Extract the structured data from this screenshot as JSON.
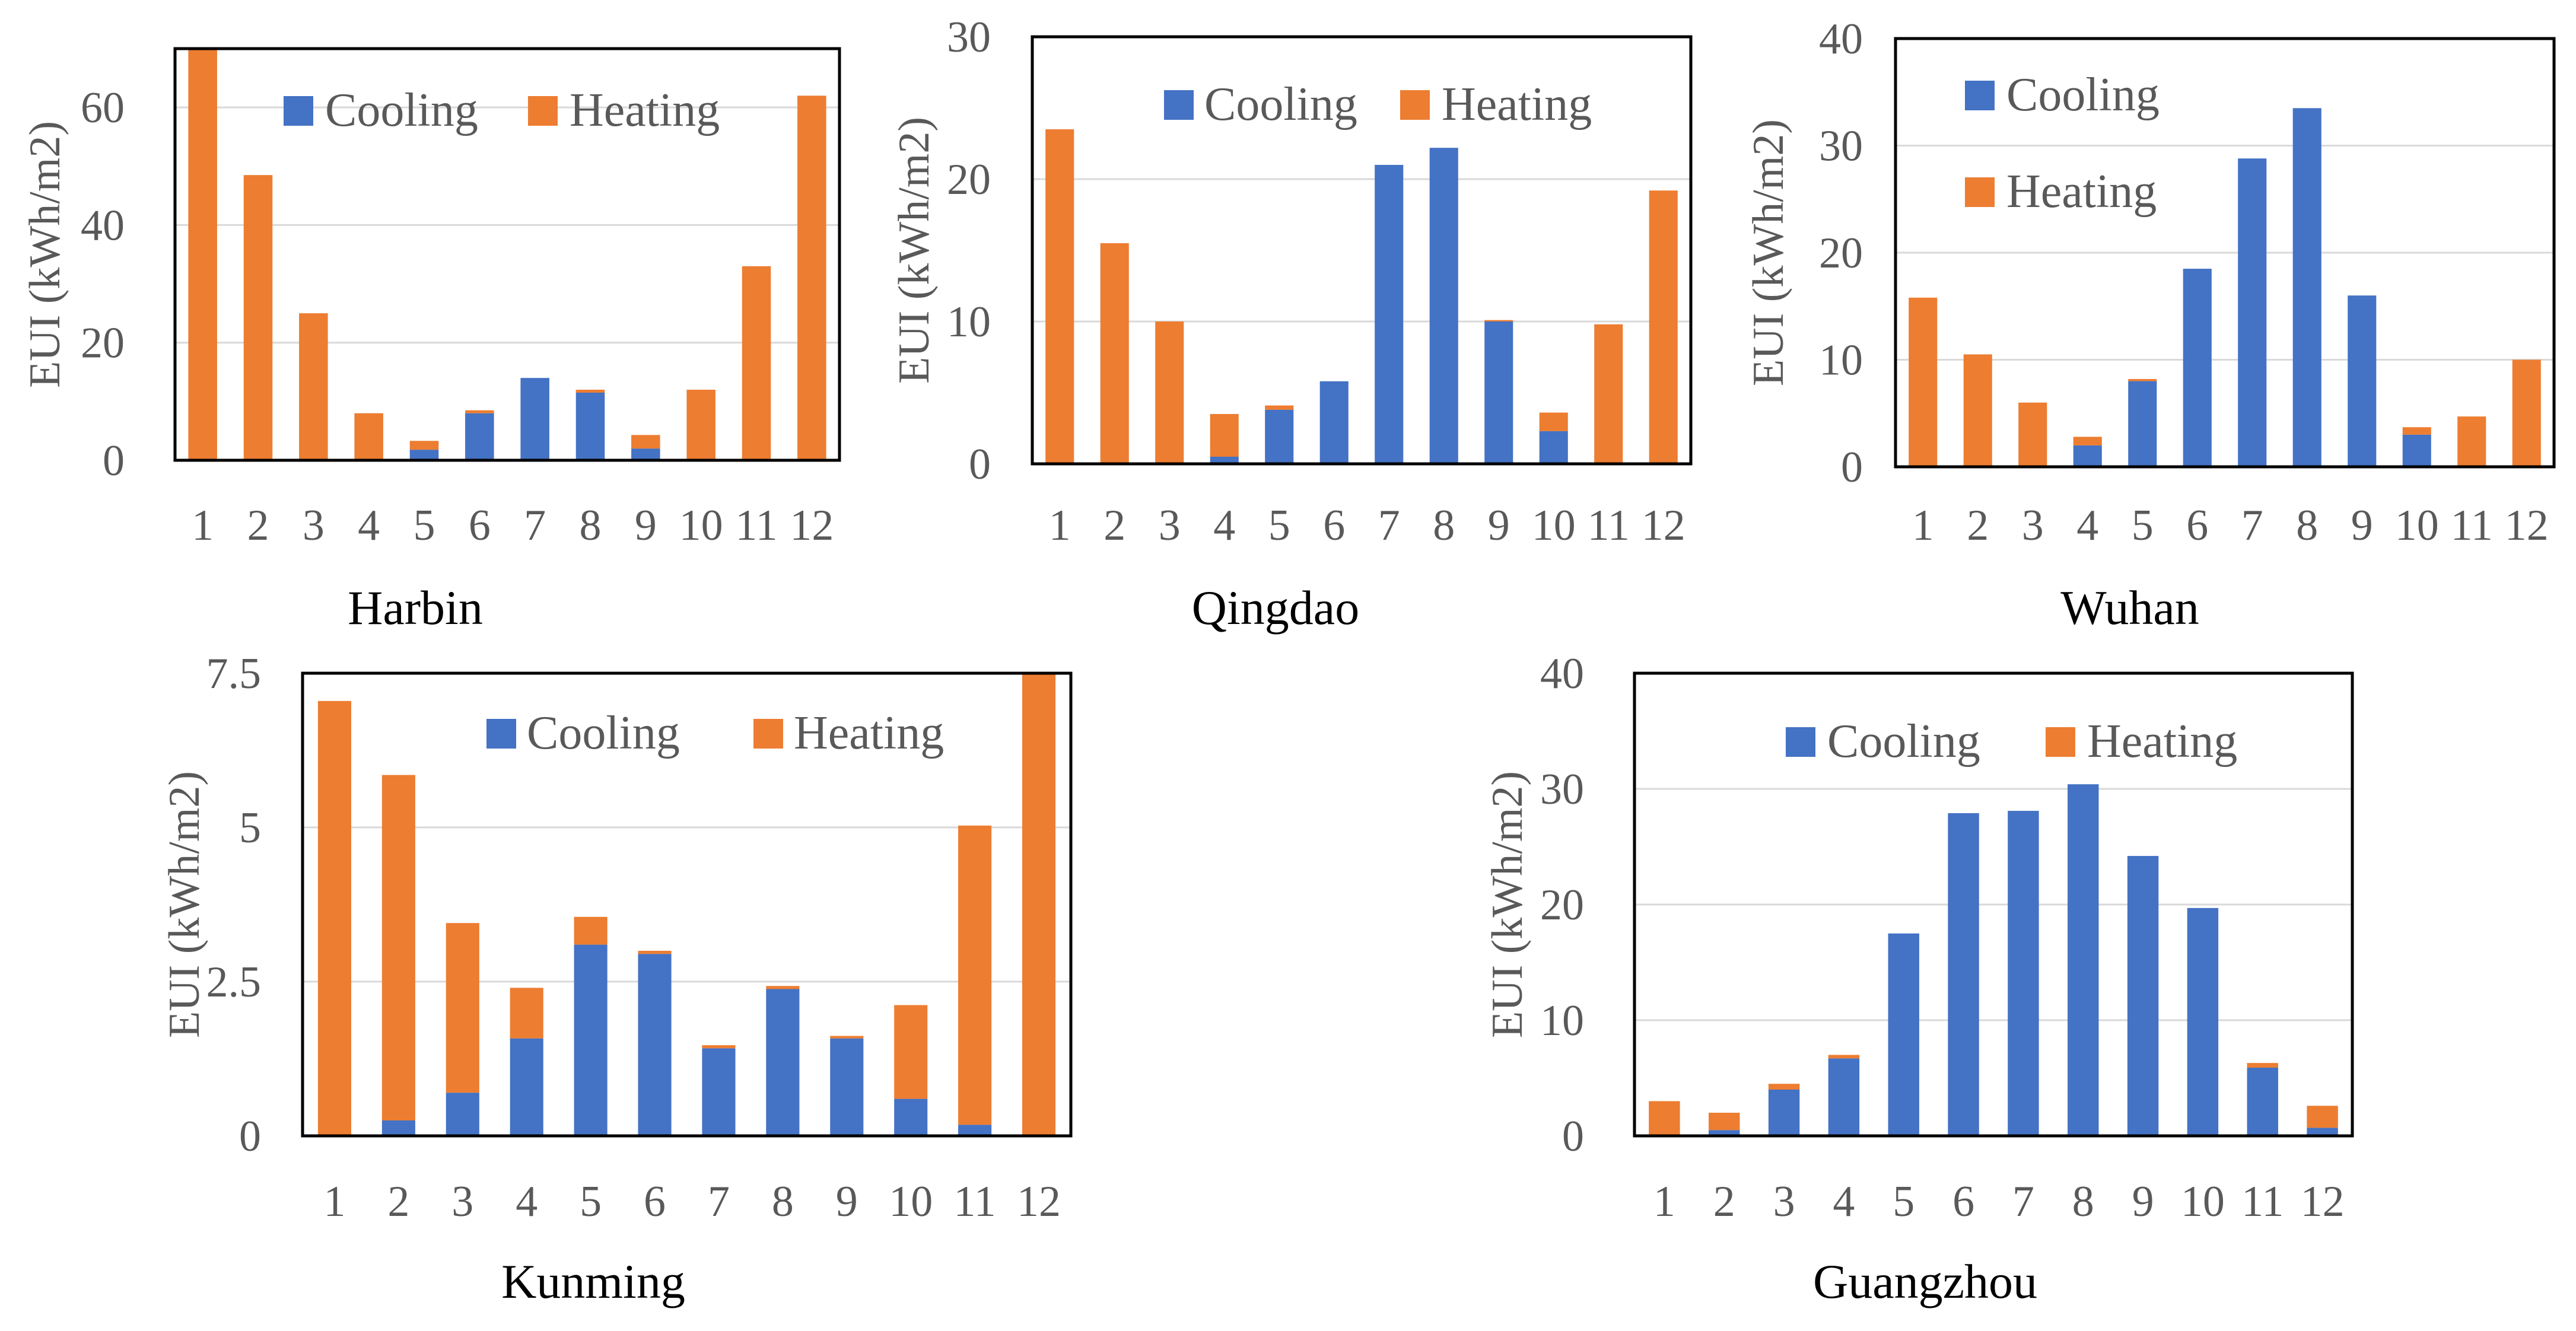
{
  "colors": {
    "cooling": "#4472C4",
    "heating": "#ED7D31",
    "gridline": "#D9D9D9",
    "frame": "#000000"
  },
  "chart_data": [
    {
      "type": "bar",
      "stacked": true,
      "title": "Harbin",
      "categories": [
        "1",
        "2",
        "3",
        "4",
        "5",
        "6",
        "7",
        "8",
        "9",
        "10",
        "11",
        "12"
      ],
      "series": [
        {
          "name": "Cooling",
          "values": [
            0,
            0,
            0,
            0,
            1.8,
            8.0,
            14.0,
            11.5,
            2.0,
            0,
            0,
            0
          ]
        },
        {
          "name": "Heating",
          "values": [
            70.0,
            48.5,
            25.0,
            8.0,
            1.5,
            0.5,
            0,
            0.5,
            2.3,
            12.0,
            33.0,
            62.0
          ]
        }
      ],
      "ylabel": "EUI (kWh/m2)",
      "ylim": [
        0,
        70
      ],
      "yticks": [
        "0",
        "20",
        "40",
        "60"
      ],
      "ytickvals": [
        0,
        20,
        40,
        60
      ],
      "legend": "top",
      "grid": true
    },
    {
      "type": "bar",
      "stacked": true,
      "title": "Qingdao",
      "categories": [
        "1",
        "2",
        "3",
        "4",
        "5",
        "6",
        "7",
        "8",
        "9",
        "10",
        "11",
        "12"
      ],
      "series": [
        {
          "name": "Cooling",
          "values": [
            0,
            0,
            0,
            0.5,
            3.8,
            5.8,
            21.0,
            22.2,
            10.0,
            2.3,
            0,
            0
          ]
        },
        {
          "name": "Heating",
          "values": [
            23.5,
            15.5,
            10.0,
            3.0,
            0.3,
            0,
            0,
            0,
            0.1,
            1.3,
            9.8,
            19.2
          ]
        }
      ],
      "ylabel": "EUI (kWh/m2)",
      "ylim": [
        0,
        30
      ],
      "yticks": [
        "0",
        "10",
        "20",
        "30"
      ],
      "ytickvals": [
        0,
        10,
        20,
        30
      ],
      "legend": "top",
      "grid": true
    },
    {
      "type": "bar",
      "stacked": true,
      "title": "Wuhan",
      "categories": [
        "1",
        "2",
        "3",
        "4",
        "5",
        "6",
        "7",
        "8",
        "9",
        "10",
        "11",
        "12"
      ],
      "series": [
        {
          "name": "Cooling",
          "values": [
            0,
            0,
            0,
            2.0,
            8.0,
            18.5,
            28.8,
            33.5,
            16.0,
            3.0,
            0,
            0
          ]
        },
        {
          "name": "Heating",
          "values": [
            15.8,
            10.5,
            6.0,
            0.8,
            0.2,
            0,
            0,
            0,
            0,
            0.7,
            4.7,
            10.0
          ]
        }
      ],
      "ylabel": "EUI (kWh/m2)",
      "ylim": [
        0,
        40
      ],
      "yticks": [
        "0",
        "10",
        "20",
        "30",
        "40"
      ],
      "ytickvals": [
        0,
        10,
        20,
        30,
        40
      ],
      "legend": "top-left",
      "grid": true
    },
    {
      "type": "bar",
      "stacked": true,
      "title": "Kunming",
      "categories": [
        "1",
        "2",
        "3",
        "4",
        "5",
        "6",
        "7",
        "8",
        "9",
        "10",
        "11",
        "12"
      ],
      "series": [
        {
          "name": "Cooling",
          "values": [
            0,
            0.25,
            0.7,
            1.58,
            3.1,
            2.95,
            1.42,
            2.38,
            1.58,
            0.6,
            0.18,
            0
          ]
        },
        {
          "name": "Heating",
          "values": [
            7.05,
            5.6,
            2.75,
            0.82,
            0.45,
            0.05,
            0.05,
            0.05,
            0.04,
            1.52,
            4.85,
            7.5
          ]
        }
      ],
      "ylabel": "EUI (kWh/m2)",
      "ylim": [
        0,
        7.5
      ],
      "yticks": [
        "0",
        "2.5",
        "5",
        "7.5"
      ],
      "ytickvals": [
        0,
        2.5,
        5,
        7.5
      ],
      "legend": "top",
      "grid": true
    },
    {
      "type": "bar",
      "stacked": true,
      "title": "Guangzhou",
      "categories": [
        "1",
        "2",
        "3",
        "4",
        "5",
        "6",
        "7",
        "8",
        "9",
        "10",
        "11",
        "12"
      ],
      "series": [
        {
          "name": "Cooling",
          "values": [
            0,
            0.5,
            4.0,
            6.7,
            17.5,
            27.9,
            28.1,
            30.4,
            24.2,
            19.7,
            5.9,
            0.7
          ]
        },
        {
          "name": "Heating",
          "values": [
            3.0,
            1.5,
            0.5,
            0.3,
            0,
            0,
            0,
            0,
            0,
            0,
            0.4,
            1.9
          ]
        }
      ],
      "ylabel": "EUI (kWh/m2)",
      "ylim": [
        0,
        40
      ],
      "yticks": [
        "0",
        "10",
        "20",
        "30",
        "40"
      ],
      "ytickvals": [
        0,
        10,
        20,
        30,
        40
      ],
      "legend": "top",
      "grid": true
    }
  ]
}
